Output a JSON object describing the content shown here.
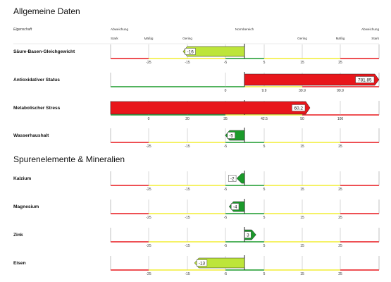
{
  "header": {
    "property": "Eigenschaft",
    "deviation_left": "Abweichung",
    "deviation_right": "Abweichung",
    "normal_range": "Normbereich",
    "strength_left": [
      "Stark",
      "Mäßig",
      "Gering"
    ],
    "strength_right": [
      "Gering",
      "Mäßig",
      "Stark"
    ]
  },
  "colors": {
    "red": "#e8161b",
    "yellow": "#f2ee33",
    "green": "#1a9a2a",
    "lime": "#bde53a",
    "frame": "#222222"
  },
  "chart_data": [
    {
      "type": "bar",
      "title": "Allgemeine Daten",
      "rows": [
        {
          "label": "Säure-Basen-Gleichgewicht",
          "value": -16,
          "value_label": "-16",
          "scale": "sym",
          "ticks": [
            "-25",
            "-15",
            "-5",
            "5",
            "15",
            "25"
          ],
          "color": "lime",
          "marker": "arrow"
        },
        {
          "label": "Antioxidativer Status",
          "value": 781.85,
          "value_label": "781.85",
          "scale": "anti",
          "ticks": [
            "0",
            "9.9",
            "39.9",
            "99.9"
          ],
          "color": "red",
          "marker": "arrow"
        },
        {
          "label": "Metabolischer Stress",
          "value": 60.2,
          "value_label": "60.2",
          "scale": "meta",
          "ticks": [
            "0",
            "20",
            "35",
            "42.5",
            "50",
            "100"
          ],
          "color": "red",
          "marker": "arrow"
        },
        {
          "label": "Wasserhaushalt",
          "value": -5,
          "value_label": "-5",
          "scale": "sym",
          "ticks": [
            "-25",
            "-15",
            "-5",
            "5",
            "15",
            "25"
          ],
          "color": "green",
          "marker": "arrow"
        }
      ]
    },
    {
      "type": "bar",
      "title": "Spurenelemente & Mineralien",
      "rows": [
        {
          "label": "Kalzium",
          "value": -2,
          "value_label": "-2",
          "scale": "sym",
          "ticks": [
            "-25",
            "-15",
            "-5",
            "5",
            "15",
            "25"
          ],
          "color": "green",
          "marker": "flag"
        },
        {
          "label": "Magnesium",
          "value": -4,
          "value_label": "-4",
          "scale": "sym",
          "ticks": [
            "-25",
            "-15",
            "-5",
            "5",
            "15",
            "25"
          ],
          "color": "green",
          "marker": "arrow"
        },
        {
          "label": "Zink",
          "value": 3,
          "value_label": "3",
          "scale": "sym",
          "ticks": [
            "-25",
            "-15",
            "-5",
            "5",
            "15",
            "25"
          ],
          "color": "green",
          "marker": "arrow"
        },
        {
          "label": "Eisen",
          "value": -13,
          "value_label": "-13",
          "scale": "sym",
          "ticks": [
            "-25",
            "-15",
            "-5",
            "5",
            "15",
            "25"
          ],
          "color": "lime",
          "marker": "arrow"
        }
      ]
    }
  ]
}
